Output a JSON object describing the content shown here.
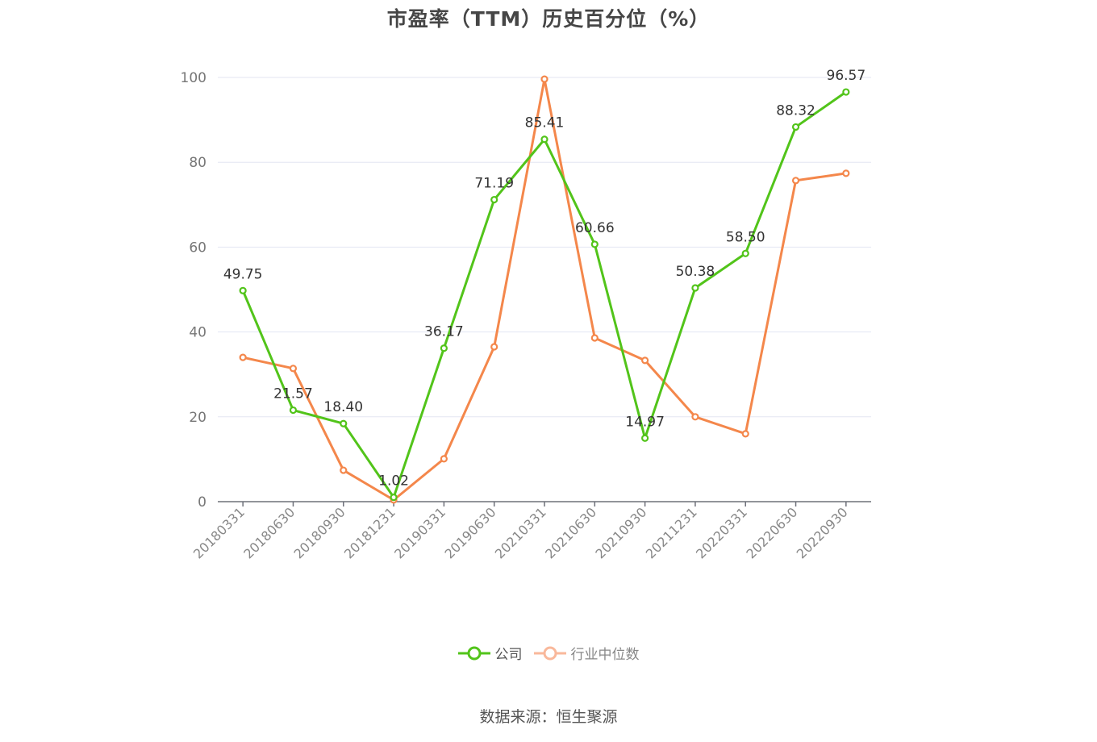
{
  "title": "市盈率（TTM）历史百分位（%）",
  "chart_data": {
    "type": "line",
    "title": "市盈率（TTM）历史百分位（%）",
    "xlabel": "",
    "ylabel": "",
    "ylim": [
      0,
      100
    ],
    "yticks": [
      0,
      20,
      40,
      60,
      80,
      100
    ],
    "grid": true,
    "legend_position": "bottom",
    "categories": [
      "20180331",
      "20180630",
      "20180930",
      "20181231",
      "20190331",
      "20190630",
      "20210331",
      "20210630",
      "20210930",
      "20211231",
      "20220331",
      "20220630",
      "20220930"
    ],
    "series": [
      {
        "name": "公司",
        "color": "#52c41a",
        "values": [
          49.75,
          21.57,
          18.4,
          1.02,
          36.17,
          71.19,
          85.41,
          60.66,
          14.97,
          50.38,
          58.5,
          88.32,
          96.57
        ],
        "labels": [
          "49.75",
          "21.57",
          "18.40",
          "1.02",
          "36.17",
          "71.19",
          "85.41",
          "60.66",
          "14.97",
          "50.38",
          "58.50",
          "88.32",
          "96.57"
        ]
      },
      {
        "name": "行业中位数",
        "color": "#f4874b",
        "values": [
          34.0,
          31.4,
          7.4,
          0.4,
          10.1,
          36.5,
          99.6,
          38.6,
          33.3,
          20.0,
          16.0,
          75.7,
          77.4
        ]
      }
    ]
  },
  "legend": [
    {
      "label": "公司",
      "color": "#52c41a"
    },
    {
      "label": "行业中位数",
      "color": "#f9b89b"
    }
  ],
  "source": "数据来源：恒生聚源"
}
